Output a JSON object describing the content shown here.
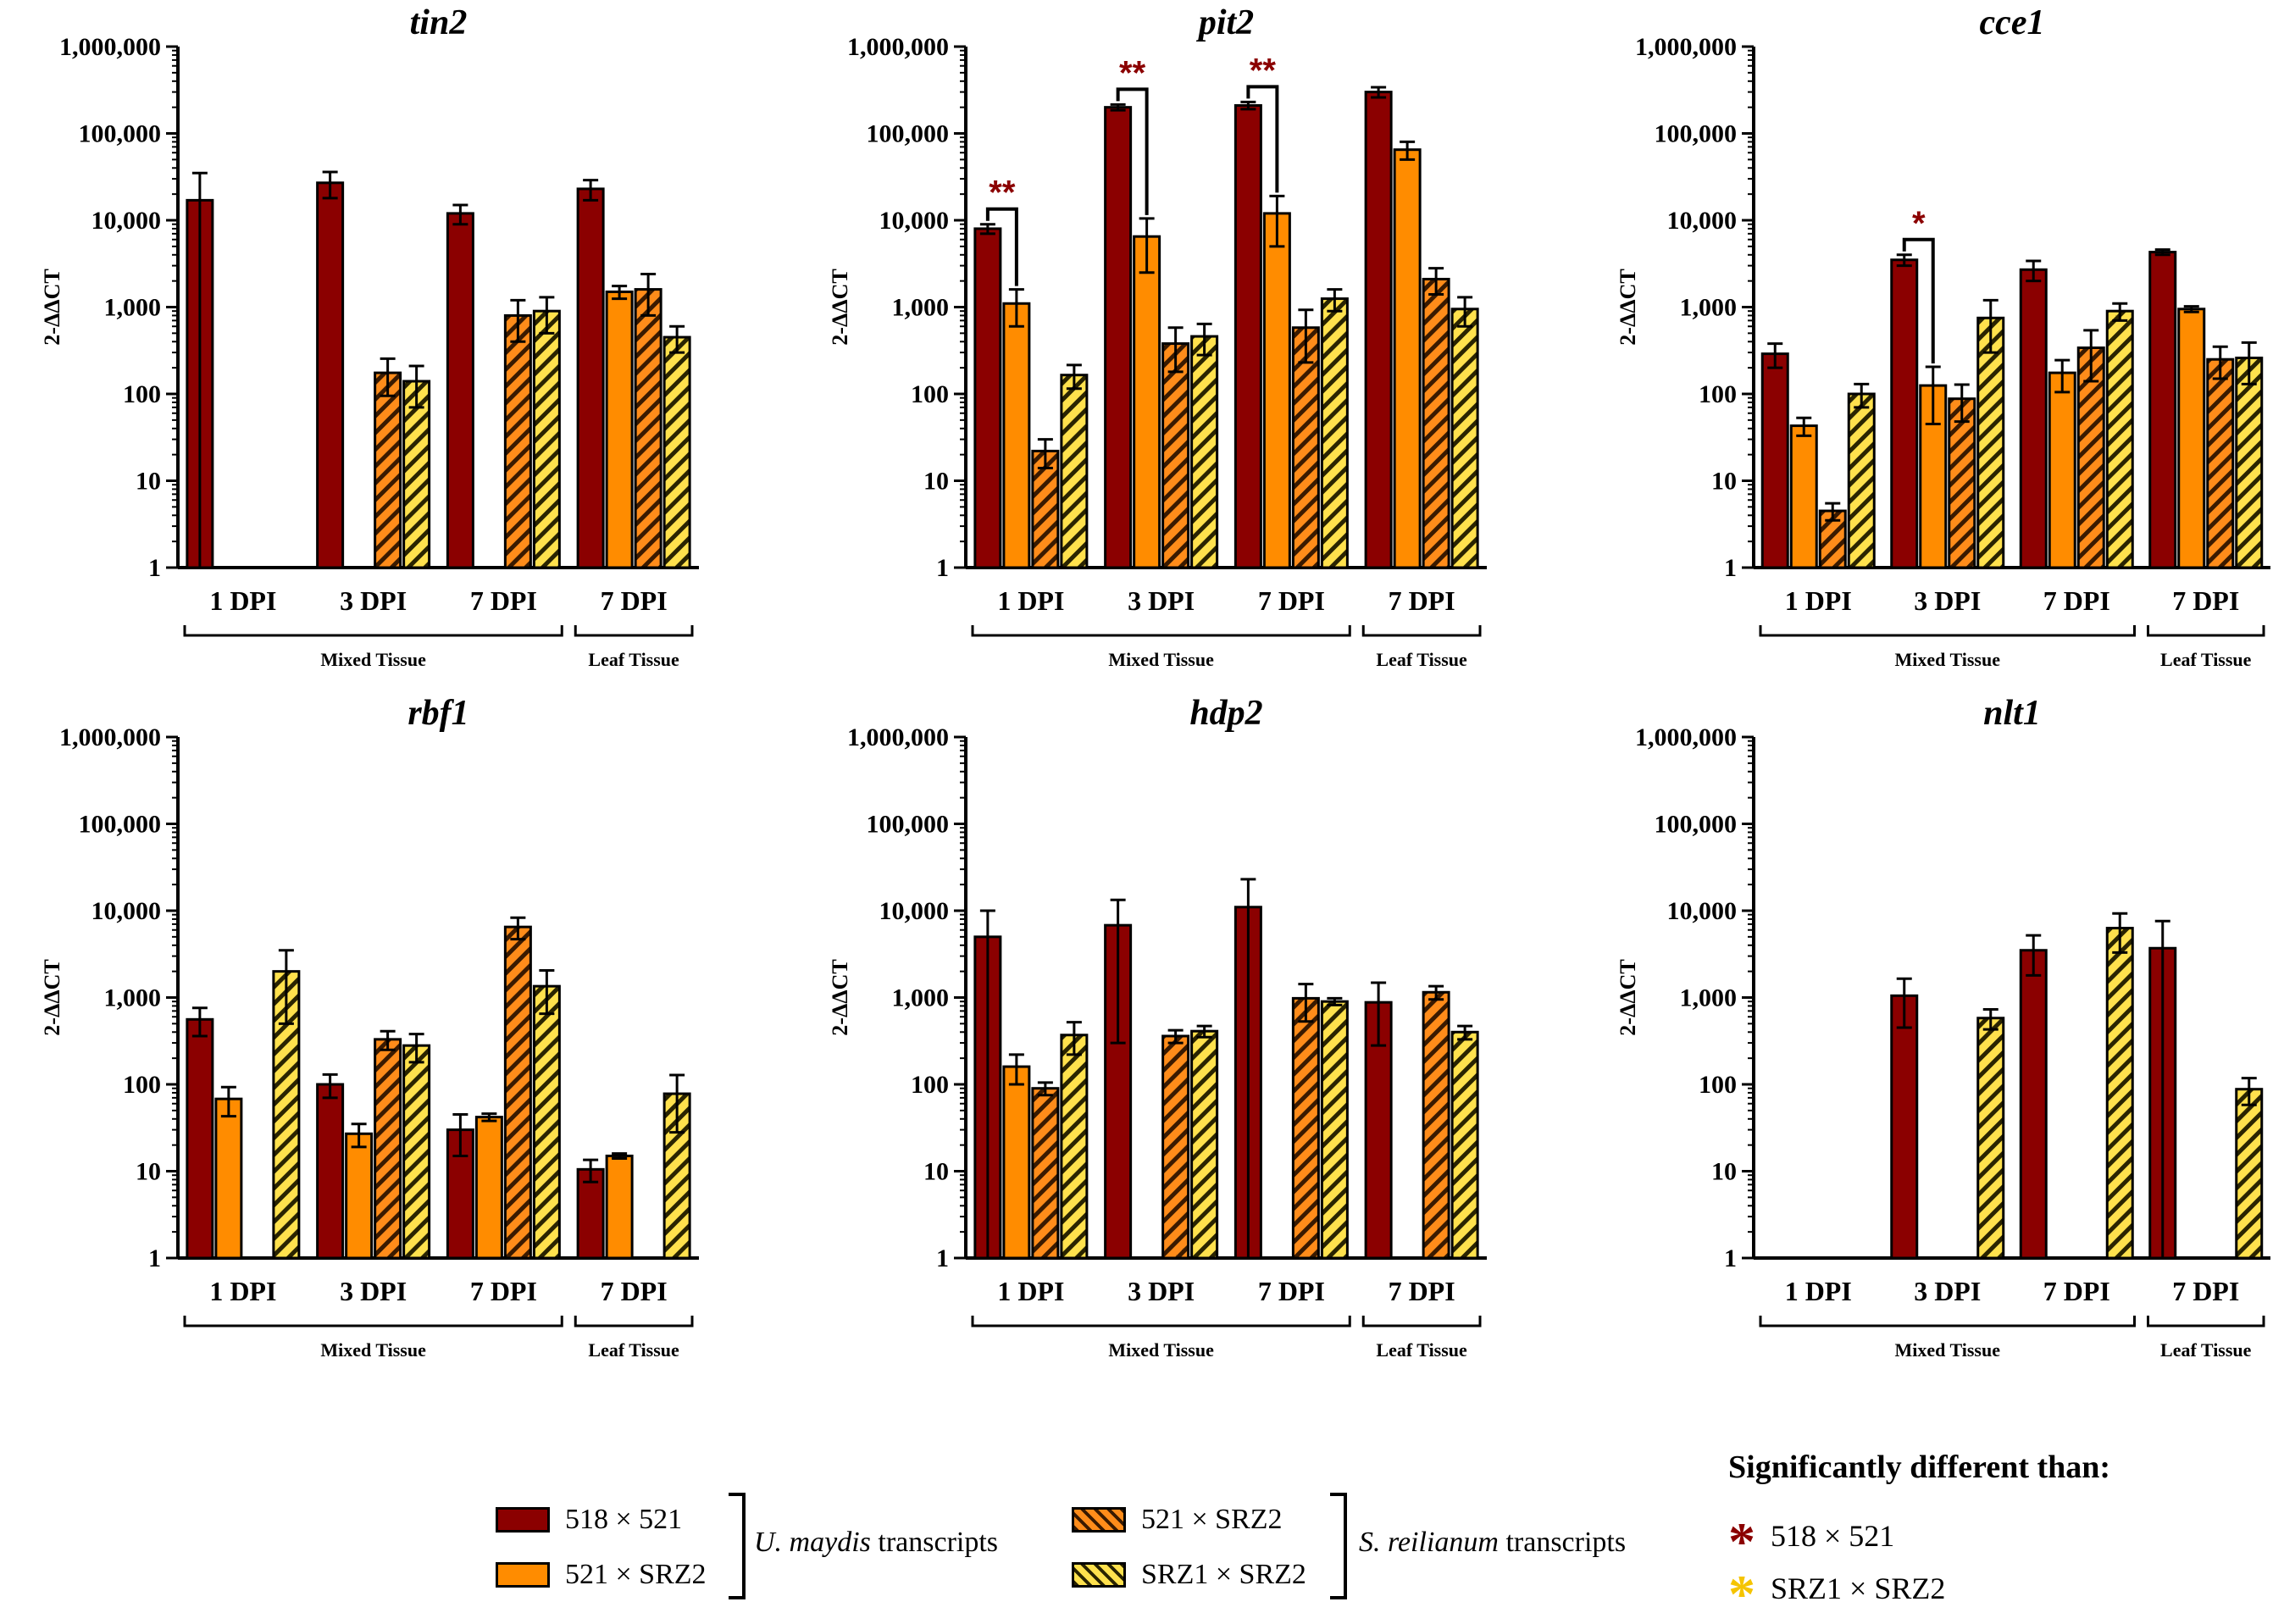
{
  "chart_data": [
    {
      "type": "bar",
      "title": "tin2",
      "ylabel": "2-ΔΔCT",
      "yscale": "log",
      "ylim": [
        1,
        1000000
      ],
      "yticks": [
        "1",
        "10",
        "100",
        "1,000",
        "10,000",
        "100,000",
        "1,000,000"
      ],
      "categories": [
        "1 DPI",
        "3 DPI",
        "7 DPI",
        "7 DPI"
      ],
      "groups": [
        {
          "label": "Mixed Tissue",
          "categories": [
            0,
            1,
            2
          ]
        },
        {
          "label": "Leaf Tissue",
          "categories": [
            3
          ]
        }
      ],
      "series": [
        {
          "name": "518 × 521",
          "values": [
            17000,
            27000,
            12000,
            23000
          ],
          "err": [
            18000,
            9000,
            3000,
            6000
          ]
        },
        {
          "name": "521 × SRZ2",
          "values": [
            null,
            null,
            null,
            1500
          ],
          "err": [
            null,
            null,
            null,
            250
          ]
        },
        {
          "name": "521 × SRZ2 (S. reilianum)",
          "values": [
            null,
            175,
            800,
            1600
          ],
          "err": [
            null,
            80,
            400,
            800
          ]
        },
        {
          "name": "SRZ1 × SRZ2",
          "values": [
            null,
            140,
            900,
            450
          ],
          "err": [
            null,
            70,
            400,
            150
          ]
        }
      ],
      "significance": []
    },
    {
      "type": "bar",
      "title": "pit2",
      "ylabel": "2-ΔΔCT",
      "yscale": "log",
      "ylim": [
        1,
        1000000
      ],
      "yticks": [
        "1",
        "10",
        "100",
        "1,000",
        "10,000",
        "100,000",
        "1,000,000"
      ],
      "categories": [
        "1 DPI",
        "3 DPI",
        "7 DPI",
        "7 DPI"
      ],
      "groups": [
        {
          "label": "Mixed Tissue",
          "categories": [
            0,
            1,
            2
          ]
        },
        {
          "label": "Leaf Tissue",
          "categories": [
            3
          ]
        }
      ],
      "series": [
        {
          "name": "518 × 521",
          "values": [
            8000,
            200000,
            210000,
            300000
          ],
          "err": [
            1000,
            15000,
            20000,
            40000
          ]
        },
        {
          "name": "521 × SRZ2",
          "values": [
            1100,
            6500,
            12000,
            65000
          ],
          "err": [
            500,
            4000,
            7000,
            15000
          ]
        },
        {
          "name": "521 × SRZ2 (S. reilianum)",
          "values": [
            22,
            380,
            580,
            2100
          ],
          "err": [
            8,
            200,
            350,
            700
          ]
        },
        {
          "name": "SRZ1 × SRZ2",
          "values": [
            165,
            460,
            1250,
            950
          ],
          "err": [
            50,
            180,
            350,
            350
          ]
        }
      ],
      "significance": [
        {
          "category": 0,
          "label": "**"
        },
        {
          "category": 1,
          "label": "**"
        },
        {
          "category": 2,
          "label": "**"
        }
      ]
    },
    {
      "type": "bar",
      "title": "cce1",
      "ylabel": "2-ΔΔCT",
      "yscale": "log",
      "ylim": [
        1,
        1000000
      ],
      "yticks": [
        "1",
        "10",
        "100",
        "1,000",
        "10,000",
        "100,000",
        "1,000,000"
      ],
      "categories": [
        "1 DPI",
        "3 DPI",
        "7 DPI",
        "7 DPI"
      ],
      "groups": [
        {
          "label": "Mixed Tissue",
          "categories": [
            0,
            1,
            2
          ]
        },
        {
          "label": "Leaf Tissue",
          "categories": [
            3
          ]
        }
      ],
      "series": [
        {
          "name": "518 × 521",
          "values": [
            290,
            3500,
            2700,
            4300
          ],
          "err": [
            90,
            500,
            700,
            300
          ]
        },
        {
          "name": "521 × SRZ2",
          "values": [
            43,
            125,
            175,
            950
          ],
          "err": [
            10,
            80,
            70,
            70
          ]
        },
        {
          "name": "521 × SRZ2 (S. reilianum)",
          "values": [
            4.5,
            88,
            340,
            250
          ],
          "err": [
            1,
            40,
            200,
            100
          ]
        },
        {
          "name": "SRZ1 × SRZ2",
          "values": [
            100,
            750,
            900,
            260
          ],
          "err": [
            30,
            450,
            200,
            130
          ]
        }
      ],
      "significance": [
        {
          "category": 1,
          "label": "*"
        }
      ]
    },
    {
      "type": "bar",
      "title": "rbf1",
      "ylabel": "2-ΔΔCT",
      "yscale": "log",
      "ylim": [
        1,
        1000000
      ],
      "yticks": [
        "1",
        "10",
        "100",
        "1,000",
        "10,000",
        "100,000",
        "1,000,000"
      ],
      "categories": [
        "1 DPI",
        "3 DPI",
        "7 DPI",
        "7 DPI"
      ],
      "groups": [
        {
          "label": "Mixed Tissue",
          "categories": [
            0,
            1,
            2
          ]
        },
        {
          "label": "Leaf Tissue",
          "categories": [
            3
          ]
        }
      ],
      "series": [
        {
          "name": "518 × 521",
          "values": [
            560,
            100,
            30,
            10.5
          ],
          "err": [
            200,
            30,
            15,
            3
          ]
        },
        {
          "name": "521 × SRZ2",
          "values": [
            68,
            27,
            42,
            15
          ],
          "err": [
            25,
            8,
            4,
            1
          ]
        },
        {
          "name": "521 × SRZ2 (S. reilianum)",
          "values": [
            null,
            330,
            6500,
            null
          ],
          "err": [
            null,
            80,
            1800,
            null
          ]
        },
        {
          "name": "SRZ1 × SRZ2",
          "values": [
            2000,
            280,
            1350,
            78
          ],
          "err": [
            1500,
            100,
            700,
            50
          ]
        }
      ],
      "significance": []
    },
    {
      "type": "bar",
      "title": "hdp2",
      "ylabel": "2-ΔΔCT",
      "yscale": "log",
      "ylim": [
        1,
        1000000
      ],
      "yticks": [
        "1",
        "10",
        "100",
        "1,000",
        "10,000",
        "100,000",
        "1,000,000"
      ],
      "categories": [
        "1 DPI",
        "3 DPI",
        "7 DPI",
        "7 DPI"
      ],
      "groups": [
        {
          "label": "Mixed Tissue",
          "categories": [
            0,
            1,
            2
          ]
        },
        {
          "label": "Leaf Tissue",
          "categories": [
            3
          ]
        }
      ],
      "series": [
        {
          "name": "518 × 521",
          "values": [
            5000,
            6800,
            11000,
            880
          ],
          "err": [
            5000,
            6500,
            12000,
            600
          ]
        },
        {
          "name": "521 × SRZ2",
          "values": [
            160,
            null,
            null,
            null
          ],
          "err": [
            60,
            null,
            null,
            null
          ]
        },
        {
          "name": "521 × SRZ2 (S. reilianum)",
          "values": [
            90,
            360,
            980,
            1150
          ],
          "err": [
            15,
            60,
            450,
            200
          ]
        },
        {
          "name": "SRZ1 × SRZ2",
          "values": [
            370,
            410,
            900,
            400
          ],
          "err": [
            150,
            60,
            80,
            70
          ]
        }
      ],
      "significance": []
    },
    {
      "type": "bar",
      "title": "nlt1",
      "ylabel": "2-ΔΔCT",
      "yscale": "log",
      "ylim": [
        1,
        1000000
      ],
      "yticks": [
        "1",
        "10",
        "100",
        "1,000",
        "10,000",
        "100,000",
        "1,000,000"
      ],
      "categories": [
        "1 DPI",
        "3 DPI",
        "7 DPI",
        "7 DPI"
      ],
      "groups": [
        {
          "label": "Mixed Tissue",
          "categories": [
            0,
            1,
            2
          ]
        },
        {
          "label": "Leaf Tissue",
          "categories": [
            3
          ]
        }
      ],
      "series": [
        {
          "name": "518 × 521",
          "values": [
            null,
            1050,
            3500,
            3700
          ],
          "err": [
            null,
            600,
            1700,
            3900
          ]
        },
        {
          "name": "521 × SRZ2",
          "values": [
            null,
            null,
            null,
            null
          ],
          "err": [
            null,
            null,
            null,
            null
          ]
        },
        {
          "name": "521 × SRZ2 (S. reilianum)",
          "values": [
            null,
            null,
            null,
            null
          ],
          "err": [
            null,
            null,
            null,
            null
          ]
        },
        {
          "name": "SRZ1 × SRZ2",
          "values": [
            null,
            580,
            6300,
            88
          ],
          "err": [
            null,
            150,
            3000,
            30
          ]
        }
      ],
      "significance": []
    }
  ],
  "style": {
    "colors": {
      "s0": "#8b0000",
      "s1": "#ff8c00",
      "s2": "#ff8c1a",
      "s3": "#ffe14d",
      "sig_red": "#8b0000",
      "sig_yellow": "#f5c400"
    }
  },
  "legend": {
    "items": [
      "518 × 521",
      "521 × SRZ2",
      "521 × SRZ2",
      "SRZ1 × SRZ2"
    ],
    "group_left_italic": "U. maydis",
    "group_left_suffix": " transcripts",
    "group_right_italic": "S. reilianum",
    "group_right_suffix": " transcripts"
  },
  "significance_legend": {
    "title": "Significantly different than:",
    "star": "*",
    "items": [
      "518 × 521",
      "SRZ1 × SRZ2"
    ]
  }
}
